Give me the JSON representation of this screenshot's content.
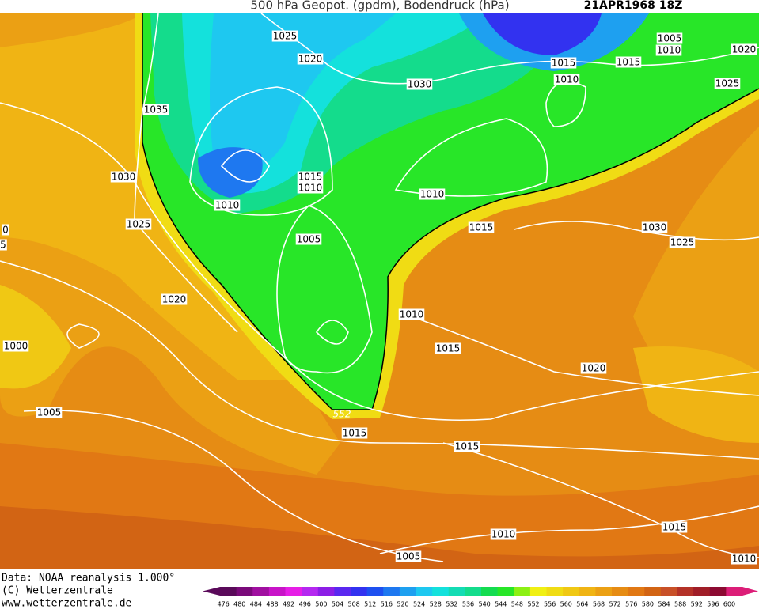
{
  "header": {
    "title": "500 hPa Geopot. (gpdm), Bodendruck (hPa)",
    "date": "21APR1968 18Z"
  },
  "isobar_labels": [
    1025,
    1020,
    1030,
    1035,
    1030,
    1015,
    1010,
    1010,
    1010,
    1025,
    1005,
    1015,
    1030,
    1025,
    1020,
    1010,
    1000,
    1015,
    1020,
    1005,
    552,
    1015,
    1015,
    1010,
    1015,
    1005,
    1010,
    1005,
    1010,
    1015,
    1015,
    1020,
    1010,
    1025,
    0,
    5
  ],
  "footer": {
    "source": "Data: NOAA reanalysis 1.000°",
    "copyright": "(C) Wetterzentrale",
    "url": "www.wetterzentrale.de"
  },
  "colorbar": {
    "labels": [
      476,
      480,
      484,
      488,
      492,
      496,
      500,
      504,
      508,
      512,
      516,
      520,
      524,
      528,
      532,
      536,
      540,
      544,
      548,
      552,
      556,
      560,
      564,
      568,
      572,
      576,
      580,
      584,
      588,
      592,
      596,
      600
    ],
    "colors": [
      "#5a0a5a",
      "#7a0a7a",
      "#a010a0",
      "#c814c8",
      "#e61ee6",
      "#b428f0",
      "#8c1ee6",
      "#5a28f0",
      "#3232f0",
      "#1e50f0",
      "#1e78f0",
      "#1ea0f0",
      "#1ec8f0",
      "#14e1dc",
      "#14dcb4",
      "#14dc8c",
      "#14dc50",
      "#28e628",
      "#8cf014",
      "#f0f014",
      "#f0dc14",
      "#f0c814",
      "#f0b414",
      "#eba014",
      "#e68c14",
      "#e17814",
      "#d26414",
      "#c85028",
      "#b43228",
      "#a01e28",
      "#8c0a32",
      "#dc1e78"
    ]
  }
}
